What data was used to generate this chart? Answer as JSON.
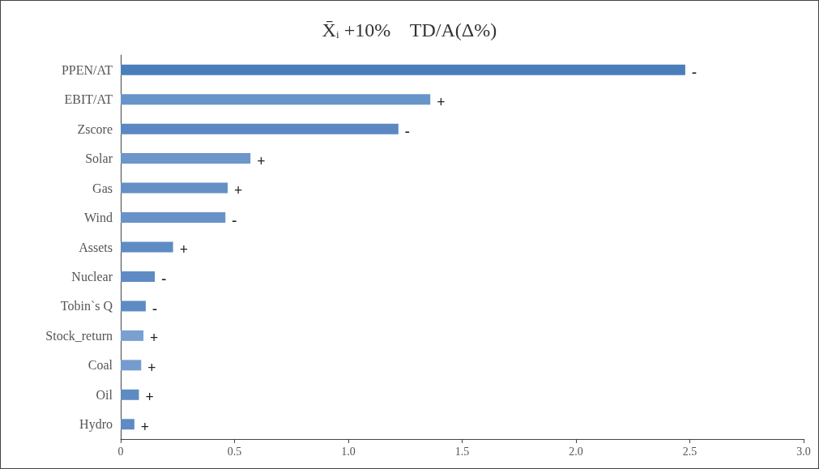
{
  "chart_data": {
    "type": "bar",
    "orientation": "horizontal",
    "title": "X̄$_{i}$ +10%    TD/A(Δ%)",
    "categories": [
      "PPEN/AT",
      "EBIT/AT",
      "Zscore",
      "Solar",
      "Gas",
      "Wind",
      "Assets",
      "Nuclear",
      "Tobin`s Q",
      "Stock_return",
      "Coal",
      "Oil",
      "Hydro"
    ],
    "values": [
      2.48,
      1.36,
      1.22,
      0.57,
      0.47,
      0.46,
      0.23,
      0.15,
      0.11,
      0.1,
      0.09,
      0.08,
      0.06
    ],
    "colors": [
      "#4a7ebb",
      "#6895c9",
      "#5b88c2",
      "#6d96ca",
      "#6590c6",
      "#6993c8",
      "#5f8bc4",
      "#5f8bc4",
      "#5f8bc4",
      "#7aa0d0",
      "#759cce",
      "#5f8bc4",
      "#5f8bc4"
    ],
    "value_labels": [
      "-",
      "+",
      "-",
      "+",
      "+",
      "-",
      "+",
      "-",
      "-",
      "+",
      "+",
      "+",
      "+"
    ],
    "xlim": [
      0,
      3
    ],
    "xticks": [
      0,
      0.5,
      {
        "value": 1,
        "label": "1.0"
      },
      1.5,
      {
        "value": 2,
        "label": "2.0"
      },
      2.5,
      {
        "value": 3,
        "label": "3.0"
      }
    ],
    "grid": false
  }
}
